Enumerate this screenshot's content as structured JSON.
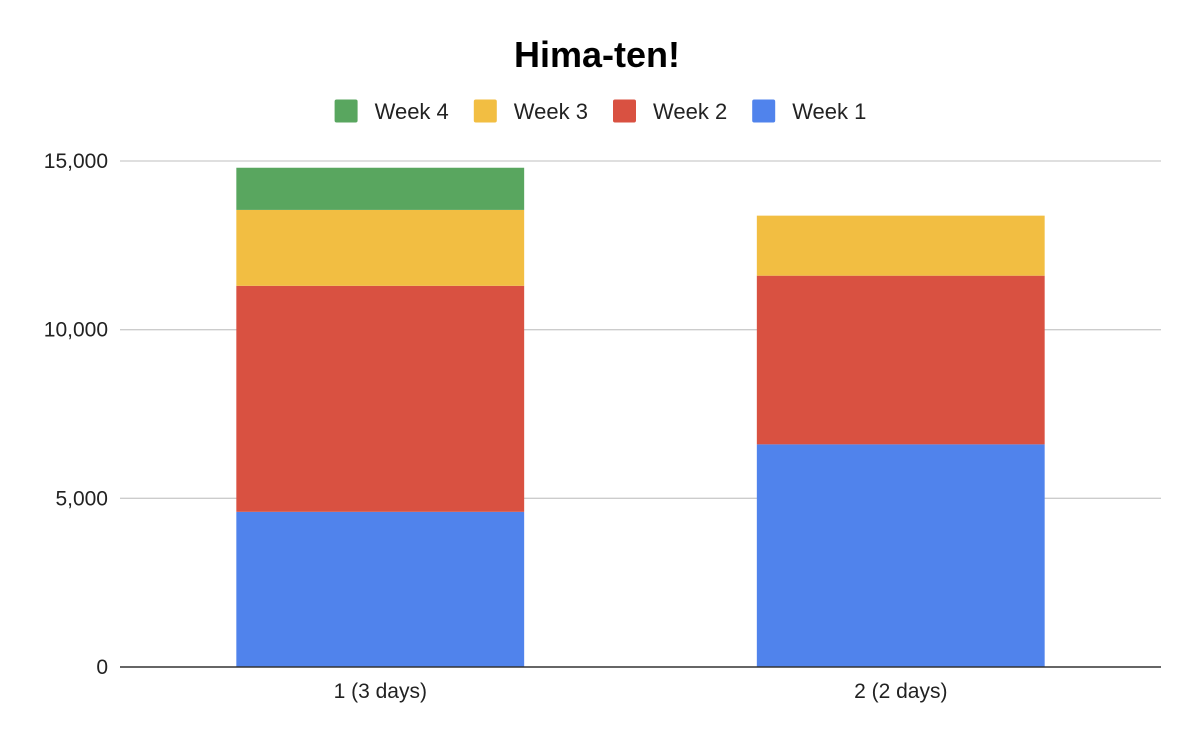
{
  "chart_data": {
    "type": "bar",
    "stacked": true,
    "title": "Hima-ten!",
    "categories": [
      "1 (3 days)",
      "2 (2 days)"
    ],
    "series": [
      {
        "name": "Week 1",
        "color": "#5083EC",
        "values": [
          4600,
          6600
        ]
      },
      {
        "name": "Week 2",
        "color": "#D95141",
        "values": [
          6700,
          5000
        ]
      },
      {
        "name": "Week 3",
        "color": "#F2BE42",
        "values": [
          2250,
          1780
        ]
      },
      {
        "name": "Week 4",
        "color": "#59A65F",
        "values": [
          1250,
          0
        ]
      }
    ],
    "legend_order": [
      "Week 4",
      "Week 3",
      "Week 2",
      "Week 1"
    ],
    "legend_position": "top",
    "ylim": [
      0,
      15000
    ],
    "yticks": [
      0,
      5000,
      10000,
      15000
    ],
    "ytick_labels": [
      "0",
      "5,000",
      "10,000",
      "15,000"
    ],
    "grid": true,
    "xlabel": "",
    "ylabel": ""
  }
}
